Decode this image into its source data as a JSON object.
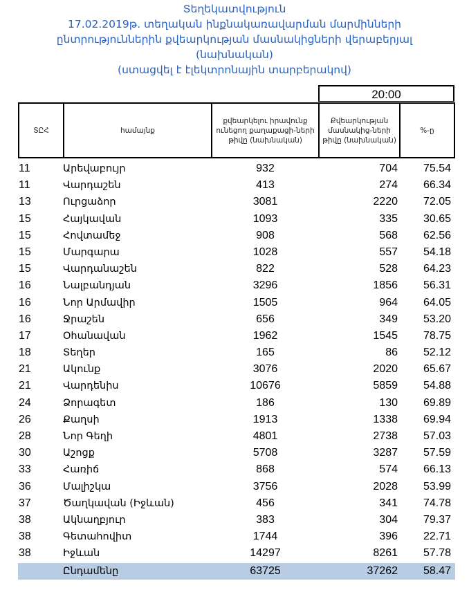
{
  "title": {
    "line1": "Տեղեկատվություն",
    "line2": "17.02.2019թ. տեղական ինքնակառավարման մարմինների",
    "line3": "ընտրություններին քվեարկության մասնակիցների վերաբերյալ",
    "line4": "(նախնական)",
    "line5": "(ստացվել է էլեկտրոնային տարբերակով)"
  },
  "time": "20:00",
  "headers": {
    "tec": "ՏԸՀ",
    "community": "համայնք",
    "eligible": "քվեարկելու իրավունք ունեցող քաղաքացի-ների թիվը  (նախնական)",
    "participants": "Քվեարկության մասնակից-ների թիվը (նախնական)",
    "percent": "%-ը"
  },
  "rows": [
    {
      "tec": "11",
      "name": "Արեվաբույր",
      "eligible": "932",
      "participants": "704",
      "percent": "75.54"
    },
    {
      "tec": "11",
      "name": "Վարդաշեն",
      "eligible": "413",
      "participants": "274",
      "percent": "66.34"
    },
    {
      "tec": "13",
      "name": "Ուրցաձոր",
      "eligible": "3081",
      "participants": "2220",
      "percent": "72.05"
    },
    {
      "tec": "15",
      "name": "Հայկավան",
      "eligible": "1093",
      "participants": "335",
      "percent": "30.65"
    },
    {
      "tec": "15",
      "name": "Հովտամեջ",
      "eligible": "908",
      "participants": "568",
      "percent": "62.56"
    },
    {
      "tec": "15",
      "name": "Մարգարա",
      "eligible": "1028",
      "participants": "557",
      "percent": "54.18"
    },
    {
      "tec": "15",
      "name": "Վարդանաշեն",
      "eligible": "822",
      "participants": "528",
      "percent": "64.23"
    },
    {
      "tec": "16",
      "name": "Նալբանդյան",
      "eligible": "3296",
      "participants": "1856",
      "percent": "56.31"
    },
    {
      "tec": "16",
      "name": "Նոր Արմավիր",
      "eligible": "1505",
      "participants": "964",
      "percent": "64.05"
    },
    {
      "tec": "16",
      "name": "Ջրաշեն",
      "eligible": "656",
      "participants": "349",
      "percent": "53.20"
    },
    {
      "tec": "17",
      "name": "Օհանավան",
      "eligible": "1962",
      "participants": "1545",
      "percent": "78.75"
    },
    {
      "tec": "18",
      "name": "Տեղեր",
      "eligible": "165",
      "participants": "86",
      "percent": "52.12"
    },
    {
      "tec": "21",
      "name": "Ակունք",
      "eligible": "3076",
      "participants": "2020",
      "percent": "65.67"
    },
    {
      "tec": "21",
      "name": "Վարդենիս",
      "eligible": "10676",
      "participants": "5859",
      "percent": "54.88"
    },
    {
      "tec": "24",
      "name": "Ձորագետ",
      "eligible": "186",
      "participants": "130",
      "percent": "69.89"
    },
    {
      "tec": "26",
      "name": "Քաղսի",
      "eligible": "1913",
      "participants": "1338",
      "percent": "69.94"
    },
    {
      "tec": "28",
      "name": "Նոր Գեղի",
      "eligible": "4801",
      "participants": "2738",
      "percent": "57.03"
    },
    {
      "tec": "30",
      "name": "Աշոցք",
      "eligible": "5708",
      "participants": "3287",
      "percent": "57.59"
    },
    {
      "tec": "33",
      "name": "Հառիճ",
      "eligible": "868",
      "participants": "574",
      "percent": "66.13"
    },
    {
      "tec": "36",
      "name": "Մալիշկա",
      "eligible": "3756",
      "participants": "2028",
      "percent": "53.99"
    },
    {
      "tec": "37",
      "name": "Ծաղկավան (Իջևան)",
      "eligible": "456",
      "participants": "341",
      "percent": "74.78"
    },
    {
      "tec": "38",
      "name": "Ակնաղբյուր",
      "eligible": "383",
      "participants": "304",
      "percent": "79.37"
    },
    {
      "tec": "38",
      "name": "Գետահովիտ",
      "eligible": "1744",
      "participants": "396",
      "percent": "22.71"
    },
    {
      "tec": "38",
      "name": "Իջևան",
      "eligible": "14297",
      "participants": "8261",
      "percent": "57.78"
    }
  ],
  "total": {
    "name": "Ընդամենը",
    "eligible": "63725",
    "participants": "37262",
    "percent": "58.47"
  },
  "colors": {
    "title": "#2a62c0",
    "total_row_bg": "#b8cce4"
  }
}
